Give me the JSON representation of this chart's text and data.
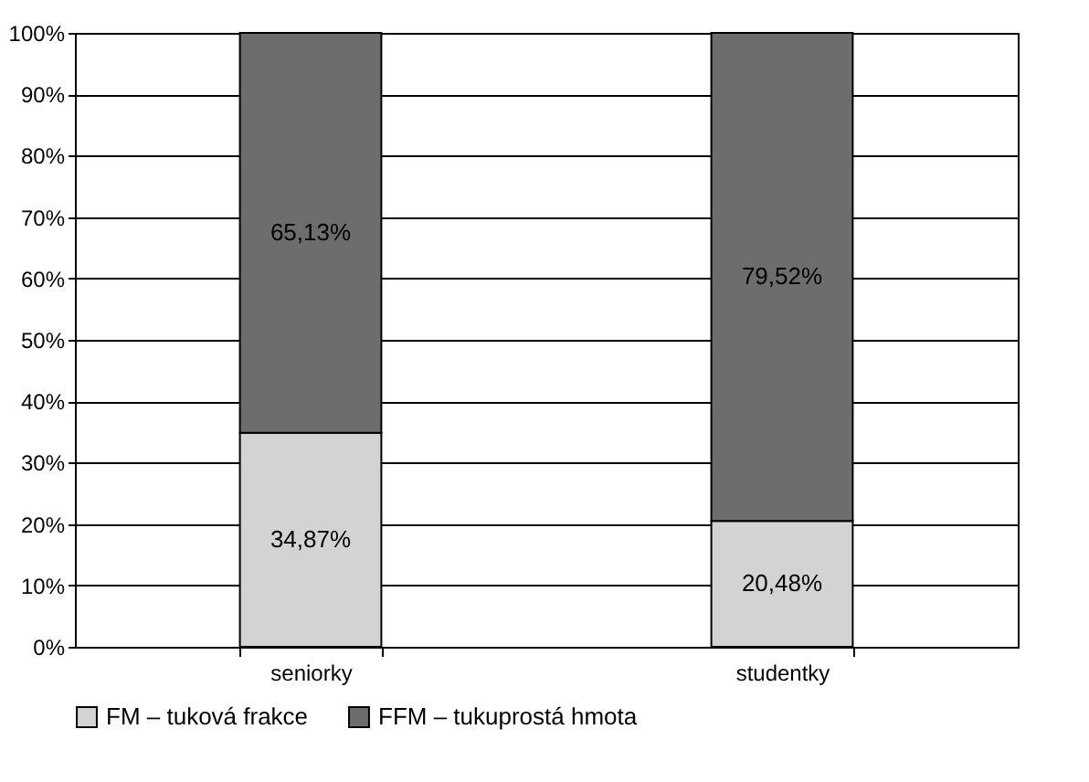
{
  "chart_data": {
    "type": "bar",
    "stacked": true,
    "categories": [
      "seniorky",
      "studentky"
    ],
    "series": [
      {
        "name": "FM – tuková frakce",
        "color": "#d3d3d3",
        "values": [
          34.87,
          20.48
        ],
        "value_labels": [
          "34,87%",
          "20,48%"
        ]
      },
      {
        "name": "FFM – tukuprostá hmota",
        "color": "#6d6d6d",
        "values": [
          65.13,
          79.52
        ],
        "value_labels": [
          "65,13%",
          "79,52%"
        ]
      }
    ],
    "ylim": [
      0,
      100
    ],
    "yticks": [
      {
        "value": 0,
        "label": "0%"
      },
      {
        "value": 10,
        "label": "10%"
      },
      {
        "value": 20,
        "label": "20%"
      },
      {
        "value": 30,
        "label": "30%"
      },
      {
        "value": 40,
        "label": "40%"
      },
      {
        "value": 50,
        "label": "50%"
      },
      {
        "value": 60,
        "label": "60%"
      },
      {
        "value": 70,
        "label": "70%"
      },
      {
        "value": 80,
        "label": "80%"
      },
      {
        "value": 90,
        "label": "90%"
      },
      {
        "value": 100,
        "label": "100%"
      }
    ],
    "grid": "y",
    "legend": "bottom"
  }
}
